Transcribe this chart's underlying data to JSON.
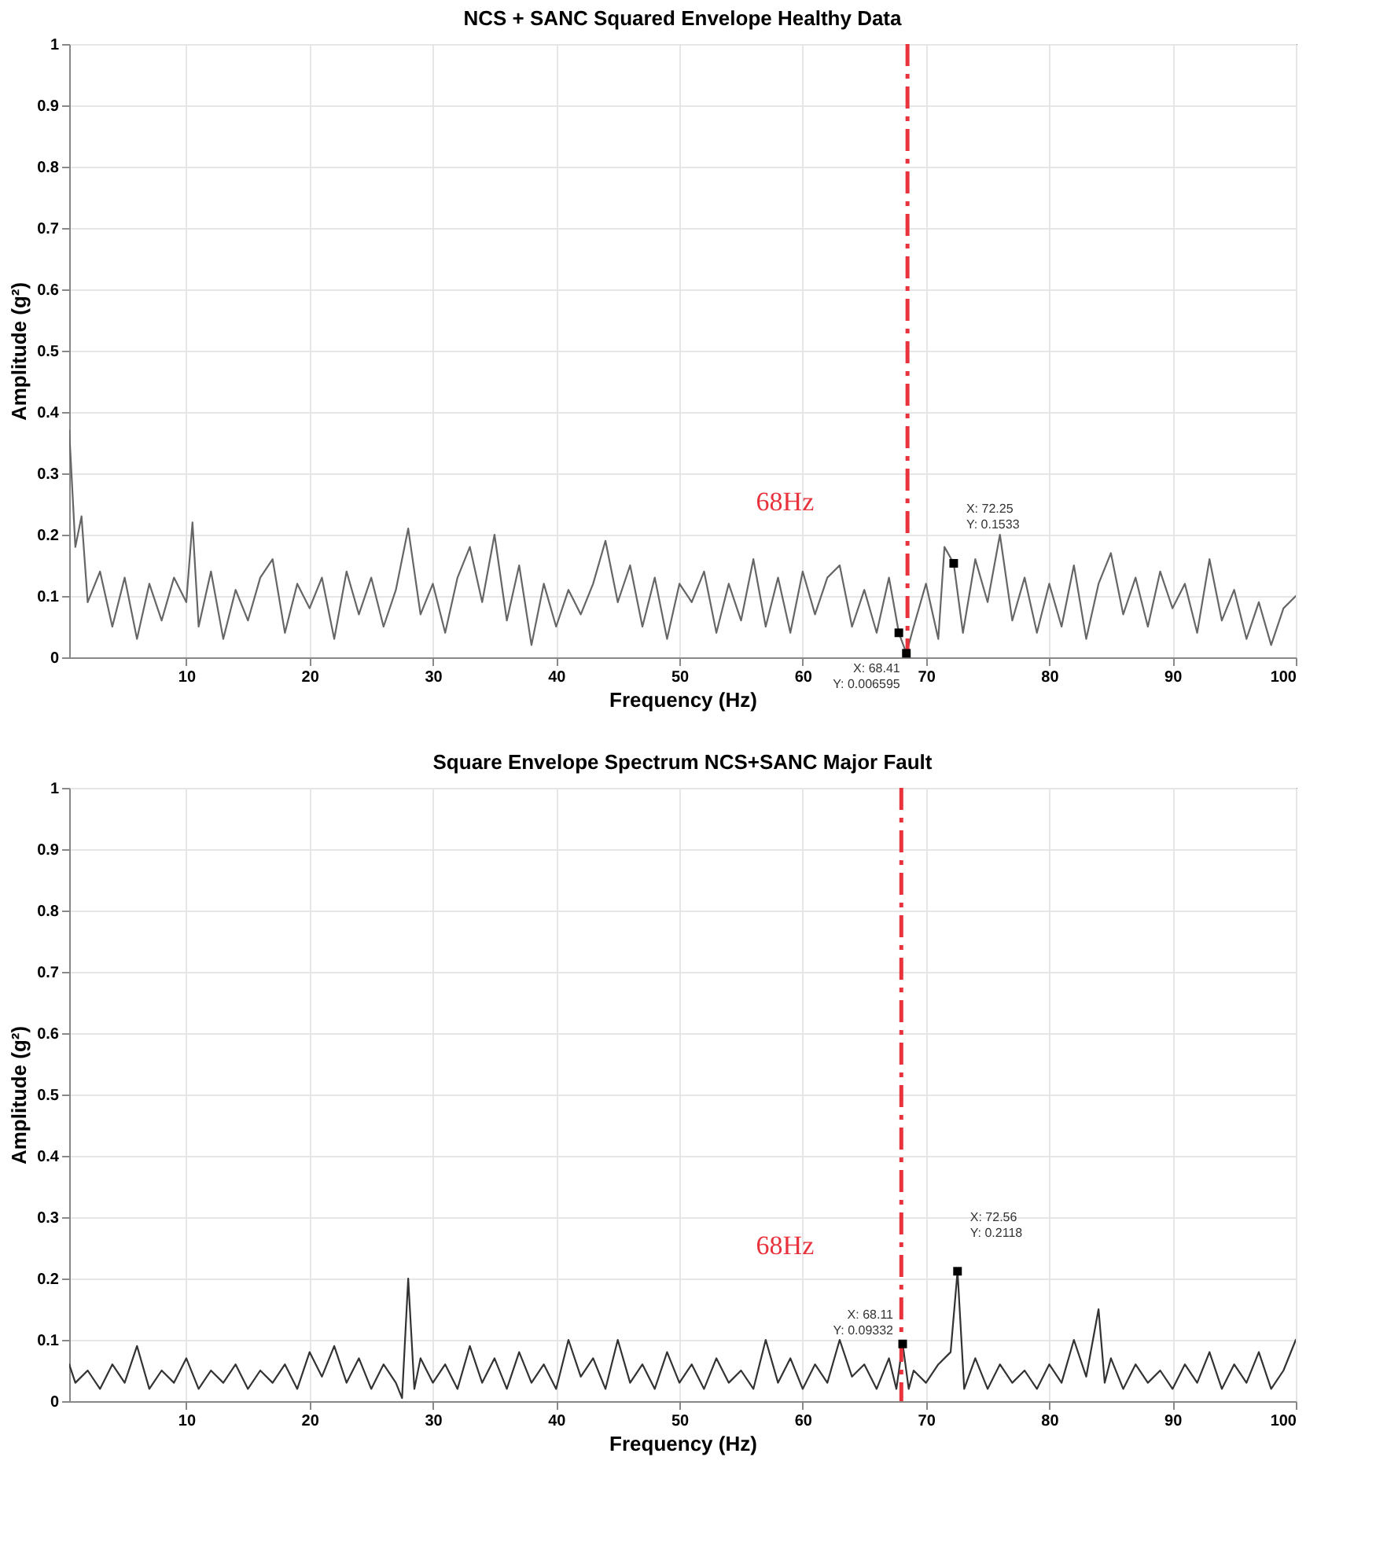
{
  "chart_data": [
    {
      "type": "line",
      "title": "NCS + SANC Squared Envelope Healthy Data",
      "xlabel": "Frequency (Hz)",
      "ylabel": "Amplitude (g²)",
      "xlim": [
        0.5,
        100
      ],
      "xticks": [
        10,
        20,
        30,
        40,
        50,
        60,
        70,
        80,
        90,
        100
      ],
      "ylim": [
        0,
        1
      ],
      "yticks": [
        0,
        0.1,
        0.2,
        0.3,
        0.4,
        0.5,
        0.6,
        0.7,
        0.8,
        0.9,
        1
      ],
      "grid": true,
      "series": [
        {
          "color": "#666666",
          "marker": "none",
          "line_style": "solid",
          "x": [
            0.5,
            1,
            1.5,
            2,
            3,
            4,
            5,
            6,
            7,
            8,
            9,
            10,
            10.5,
            11,
            12,
            13,
            14,
            15,
            16,
            17,
            18,
            19,
            20,
            21,
            22,
            23,
            24,
            25,
            26,
            27,
            28,
            29,
            30,
            31,
            32,
            33,
            34,
            35,
            36,
            37,
            38,
            39,
            40,
            41,
            42,
            43,
            44,
            45,
            46,
            47,
            48,
            49,
            50,
            51,
            52,
            53,
            54,
            55,
            56,
            57,
            58,
            59,
            60,
            61,
            62,
            63,
            64,
            65,
            66,
            67,
            67.8,
            68.41,
            69,
            70,
            71,
            71.5,
            72.25,
            73,
            74,
            75,
            76,
            77,
            78,
            79,
            80,
            81,
            82,
            83,
            84,
            85,
            86,
            87,
            88,
            89,
            90,
            91,
            92,
            93,
            94,
            95,
            96,
            97,
            98,
            99,
            100
          ],
          "values": [
            0.37,
            0.18,
            0.23,
            0.09,
            0.14,
            0.05,
            0.13,
            0.03,
            0.12,
            0.06,
            0.13,
            0.09,
            0.22,
            0.05,
            0.14,
            0.03,
            0.11,
            0.06,
            0.13,
            0.16,
            0.04,
            0.12,
            0.08,
            0.13,
            0.03,
            0.14,
            0.07,
            0.13,
            0.05,
            0.11,
            0.21,
            0.07,
            0.12,
            0.04,
            0.13,
            0.18,
            0.09,
            0.2,
            0.06,
            0.15,
            0.02,
            0.12,
            0.05,
            0.11,
            0.07,
            0.12,
            0.19,
            0.09,
            0.15,
            0.05,
            0.13,
            0.03,
            0.12,
            0.09,
            0.14,
            0.04,
            0.12,
            0.06,
            0.16,
            0.05,
            0.13,
            0.04,
            0.14,
            0.07,
            0.13,
            0.15,
            0.05,
            0.11,
            0.04,
            0.13,
            0.04,
            0.006595,
            0.05,
            0.12,
            0.03,
            0.18,
            0.1533,
            0.04,
            0.16,
            0.09,
            0.2,
            0.06,
            0.13,
            0.04,
            0.12,
            0.05,
            0.15,
            0.03,
            0.12,
            0.17,
            0.07,
            0.13,
            0.05,
            0.14,
            0.08,
            0.12,
            0.04,
            0.16,
            0.06,
            0.11,
            0.03,
            0.09,
            0.02,
            0.08,
            0.1
          ]
        },
        {
          "type": "scatter",
          "color": "#000000",
          "marker": "square",
          "x": [
            67.8,
            68.41,
            72.25
          ],
          "values": [
            0.04,
            0.006595,
            0.1533
          ]
        }
      ],
      "ref_lines": [
        {
          "axis": "x",
          "value": 68.5,
          "color": "#e8323c",
          "line_style": "dashed"
        }
      ],
      "annotations": [
        "68Hz",
        {
          "text": "X: 68.41\nY: 0.006595",
          "x": 68.41,
          "y": 0.006595
        },
        {
          "text": "X: 72.25\nY: 0.1533",
          "x": 72.25,
          "y": 0.1533
        }
      ]
    },
    {
      "type": "line",
      "title": "Square Envelope Spectrum NCS+SANC Major Fault",
      "xlabel": "Frequency (Hz)",
      "ylabel": "Amplitude (g²)",
      "xlim": [
        0.5,
        100
      ],
      "xticks": [
        10,
        20,
        30,
        40,
        50,
        60,
        70,
        80,
        90,
        100
      ],
      "ylim": [
        0,
        1
      ],
      "yticks": [
        0,
        0.1,
        0.2,
        0.3,
        0.4,
        0.5,
        0.6,
        0.7,
        0.8,
        0.9,
        1
      ],
      "grid": true,
      "series": [
        {
          "color": "#333333",
          "marker": "none",
          "line_style": "solid",
          "x": [
            0.5,
            1,
            2,
            3,
            4,
            5,
            6,
            7,
            8,
            9,
            10,
            11,
            12,
            13,
            14,
            15,
            16,
            17,
            18,
            19,
            20,
            21,
            22,
            23,
            24,
            25,
            26,
            27,
            27.5,
            28,
            28.5,
            29,
            30,
            31,
            32,
            33,
            34,
            35,
            36,
            37,
            38,
            39,
            40,
            41,
            42,
            43,
            44,
            45,
            46,
            47,
            48,
            49,
            50,
            51,
            52,
            53,
            54,
            55,
            56,
            57,
            58,
            59,
            60,
            61,
            62,
            63,
            64,
            65,
            66,
            67,
            67.6,
            68.11,
            68.6,
            69,
            70,
            71,
            72,
            72.56,
            73.1,
            74,
            75,
            76,
            77,
            78,
            79,
            80,
            81,
            82,
            83,
            84,
            84.5,
            85,
            86,
            87,
            88,
            89,
            90,
            91,
            92,
            93,
            94,
            95,
            96,
            97,
            98,
            99,
            100
          ],
          "values": [
            0.06,
            0.03,
            0.05,
            0.02,
            0.06,
            0.03,
            0.09,
            0.02,
            0.05,
            0.03,
            0.07,
            0.02,
            0.05,
            0.03,
            0.06,
            0.02,
            0.05,
            0.03,
            0.06,
            0.02,
            0.08,
            0.04,
            0.09,
            0.03,
            0.07,
            0.02,
            0.06,
            0.03,
            0.005,
            0.2,
            0.02,
            0.07,
            0.03,
            0.06,
            0.02,
            0.09,
            0.03,
            0.07,
            0.02,
            0.08,
            0.03,
            0.06,
            0.02,
            0.1,
            0.04,
            0.07,
            0.02,
            0.1,
            0.03,
            0.06,
            0.02,
            0.08,
            0.03,
            0.06,
            0.02,
            0.07,
            0.03,
            0.05,
            0.02,
            0.1,
            0.03,
            0.07,
            0.02,
            0.06,
            0.03,
            0.1,
            0.04,
            0.06,
            0.02,
            0.07,
            0.02,
            0.09332,
            0.02,
            0.05,
            0.03,
            0.06,
            0.08,
            0.2118,
            0.02,
            0.07,
            0.02,
            0.06,
            0.03,
            0.05,
            0.02,
            0.06,
            0.03,
            0.1,
            0.04,
            0.15,
            0.03,
            0.07,
            0.02,
            0.06,
            0.03,
            0.05,
            0.02,
            0.06,
            0.03,
            0.08,
            0.02,
            0.06,
            0.03,
            0.08,
            0.02,
            0.05,
            0.1
          ]
        },
        {
          "type": "scatter",
          "color": "#000000",
          "marker": "square",
          "x": [
            68.11,
            72.56
          ],
          "values": [
            0.09332,
            0.2118
          ]
        }
      ],
      "ref_lines": [
        {
          "axis": "x",
          "value": 68,
          "color": "#e8323c",
          "line_style": "dashed"
        }
      ],
      "annotations": [
        "68Hz",
        {
          "text": "X: 68.11\nY: 0.09332",
          "x": 68.11,
          "y": 0.09332
        },
        {
          "text": "X: 72.56\nY: 0.2118",
          "x": 72.56,
          "y": 0.2118
        }
      ]
    }
  ]
}
